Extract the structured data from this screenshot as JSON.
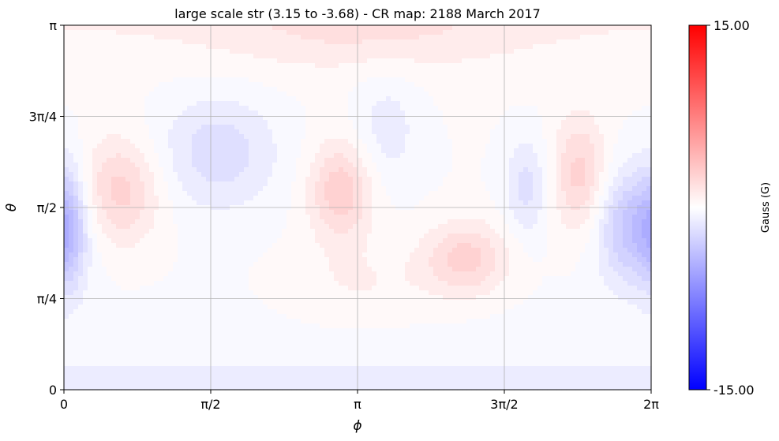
{
  "chart_data": {
    "type": "heatmap",
    "title": "large scale str (3.15 to -3.68) - CR map: 2188 March 2017",
    "xlabel": "ϕ",
    "ylabel": "θ",
    "xlim": [
      0,
      6.2832
    ],
    "ylim": [
      0,
      3.1416
    ],
    "x_ticks": [
      {
        "value": 0,
        "label": "0"
      },
      {
        "value": 1.5708,
        "label": "π/2"
      },
      {
        "value": 3.1416,
        "label": "π"
      },
      {
        "value": 4.7124,
        "label": "3π/2"
      },
      {
        "value": 6.2832,
        "label": "2π"
      }
    ],
    "y_ticks": [
      {
        "value": 0,
        "label": "0"
      },
      {
        "value": 0.7854,
        "label": "π/4"
      },
      {
        "value": 1.5708,
        "label": "π/2"
      },
      {
        "value": 2.3562,
        "label": "3π/4"
      },
      {
        "value": 3.1416,
        "label": "π"
      }
    ],
    "grid": true,
    "colormap": "bwr",
    "colorbar": {
      "label": "Gauss (G)",
      "min": -15.0,
      "max": 15.0,
      "min_label": "-15.00",
      "max_label": "15.00"
    },
    "value_range": {
      "min": -3.68,
      "max": 3.15
    },
    "features": [
      {
        "phi": 0.6,
        "theta": 1.71,
        "value": 2.6,
        "sigma_phi": 0.3,
        "sigma_theta": 0.32
      },
      {
        "phi": 2.96,
        "theta": 1.71,
        "value": 2.9,
        "sigma_phi": 0.24,
        "sigma_theta": 0.3
      },
      {
        "phi": 4.3,
        "theta": 1.13,
        "value": 2.6,
        "sigma_phi": 0.32,
        "sigma_theta": 0.22
      },
      {
        "phi": 5.52,
        "theta": 1.85,
        "value": 2.6,
        "sigma_phi": 0.2,
        "sigma_theta": 0.35
      },
      {
        "phi": 6.12,
        "theta": 1.4,
        "value": -3.68,
        "sigma_phi": 0.28,
        "sigma_theta": 0.35
      },
      {
        "phi": 1.65,
        "theta": 2.05,
        "value": -2.0,
        "sigma_phi": 0.45,
        "sigma_theta": 0.35
      },
      {
        "phi": 4.95,
        "theta": 1.75,
        "value": -1.8,
        "sigma_phi": 0.16,
        "sigma_theta": 0.3
      },
      {
        "phi": 3.45,
        "theta": 2.25,
        "value": -1.2,
        "sigma_phi": 0.25,
        "sigma_theta": 0.35
      },
      {
        "phi": 0.05,
        "theta": 1.4,
        "value": -2.2,
        "sigma_phi": 0.12,
        "sigma_theta": 0.4
      },
      {
        "phi": 3.2,
        "theta": 3.05,
        "value": 1.1,
        "sigma_phi": 1.2,
        "sigma_theta": 0.22
      },
      {
        "phi": 3.2,
        "theta": 0.9,
        "value": 0.8,
        "sigma_phi": 0.55,
        "sigma_theta": 0.25
      }
    ],
    "polar_bands": [
      {
        "location": "south",
        "value": -1.5
      },
      {
        "location": "north",
        "value": 0.8
      }
    ]
  }
}
